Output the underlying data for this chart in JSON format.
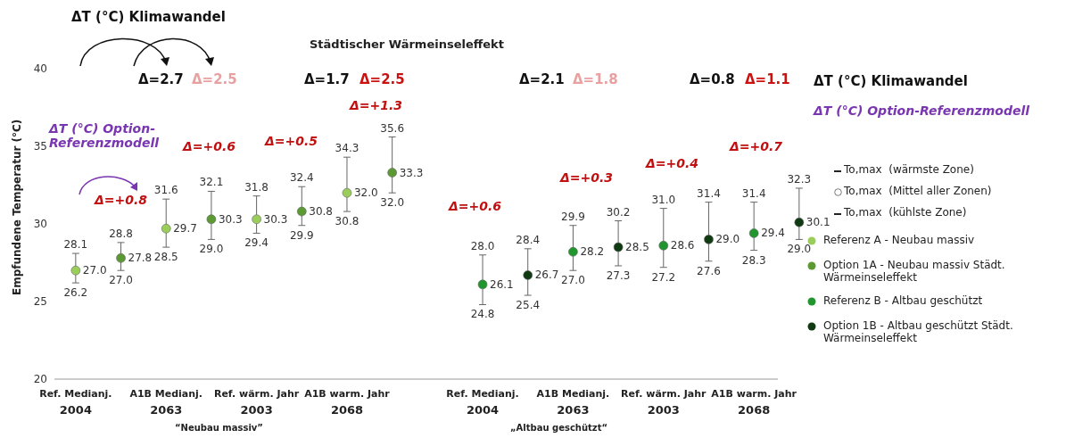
{
  "chart_data": {
    "type": "scatter",
    "title": "Städtischer Wärmeinseleffekt",
    "ylabel": "Empfundene Temperatur (°C)",
    "categories": [
      "Ref. Medianj. 2004",
      null,
      "A1B Medianj. 2063",
      null,
      "Ref. wärm. Jahr 2003",
      null,
      "A1B warm. Jahr 2068",
      null,
      null,
      "Ref. Medianj. 2004",
      null,
      "A1B Medianj. 2063",
      null,
      "Ref. wärm. Jahr 2003",
      null,
      "A1B warm. Jahr 2068",
      null
    ],
    "series": [
      {
        "name": "Referenz A - Neubau massiv",
        "color": "#9acd5a",
        "values": [
          27.0,
          null,
          29.7,
          null,
          30.3,
          null,
          32.0,
          null,
          null,
          null,
          null,
          null,
          null,
          null,
          null,
          null,
          null
        ],
        "value_labels": [
          "27.0",
          null,
          "29.7",
          null,
          "30.3",
          null,
          "32.0",
          null,
          null,
          null,
          null,
          null,
          null,
          null,
          null,
          null,
          null
        ],
        "errors": [
          [
            26.2,
            28.1
          ],
          null,
          [
            28.5,
            31.6
          ],
          null,
          [
            29.4,
            31.8
          ],
          null,
          [
            30.8,
            34.3
          ],
          null,
          null,
          null,
          null,
          null,
          null,
          null,
          null,
          null,
          null
        ]
      },
      {
        "name": "Option 1A - Neubau massiv Städt. Wärmeinseleffekt",
        "color": "#5b9a32",
        "values": [
          null,
          27.8,
          null,
          30.3,
          null,
          30.8,
          null,
          33.3,
          null,
          null,
          null,
          null,
          null,
          null,
          null,
          null,
          null
        ],
        "value_labels": [
          null,
          "27.8",
          null,
          "30.3",
          null,
          "30.8",
          null,
          "33.3",
          null,
          null,
          null,
          null,
          null,
          null,
          null,
          null,
          null
        ],
        "errors": [
          null,
          [
            27.0,
            28.8
          ],
          null,
          [
            29.0,
            32.1
          ],
          null,
          [
            29.9,
            32.4
          ],
          null,
          [
            32.0,
            35.6
          ],
          null,
          null,
          null,
          null,
          null,
          null,
          null,
          null,
          null
        ]
      },
      {
        "name": "Referenz B - Altbau geschützt",
        "color": "#22962e",
        "values": [
          null,
          null,
          null,
          null,
          null,
          null,
          null,
          null,
          null,
          26.1,
          null,
          28.2,
          null,
          28.6,
          null,
          29.4,
          null
        ],
        "value_labels": [
          null,
          null,
          null,
          null,
          null,
          null,
          null,
          null,
          null,
          "26.1",
          null,
          "28.2",
          null,
          "28.6",
          null,
          "29.4",
          null
        ],
        "errors": [
          null,
          null,
          null,
          null,
          null,
          null,
          null,
          null,
          null,
          [
            24.8,
            28.0
          ],
          null,
          [
            27.0,
            29.9
          ],
          null,
          [
            27.2,
            31.0
          ],
          null,
          [
            28.3,
            31.4
          ],
          null
        ]
      },
      {
        "name": "Option 1B - Altbau geschützt Städt. Wärmeinseleffekt",
        "color": "#0f3a12",
        "values": [
          null,
          null,
          null,
          null,
          null,
          null,
          null,
          null,
          null,
          null,
          26.7,
          null,
          28.5,
          null,
          29.0,
          null,
          30.1
        ],
        "value_labels": [
          null,
          null,
          null,
          null,
          null,
          null,
          null,
          null,
          null,
          null,
          "26.7",
          null,
          "28.5",
          null,
          "29.0",
          null,
          "30.1"
        ],
        "errors": [
          null,
          null,
          null,
          null,
          null,
          null,
          null,
          null,
          null,
          null,
          [
            25.4,
            28.4
          ],
          null,
          [
            27.3,
            30.2
          ],
          null,
          [
            27.6,
            31.4
          ],
          null,
          [
            29.0,
            32.3
          ]
        ]
      }
    ],
    "ylim": [
      20,
      40
    ],
    "yticks": [
      20,
      25,
      30,
      35,
      40
    ],
    "data_labels": true,
    "legend": "right",
    "marker": "circle",
    "annotations": [
      "ΔT (°C) Klimawandel",
      "ΔT (°C) Option-Referenzmodell",
      "ΔT (°C) Klimawandel",
      "ΔT (°C) Option-Referenzmodell",
      "Δ=2.7",
      "Δ=2.5",
      "Δ=1.7",
      "Δ=2.5",
      "Δ=2.1",
      "Δ=1.8",
      "Δ=0.8",
      "Δ=1.1",
      "Δ=+0.8",
      "Δ=+0.6",
      "Δ=+0.5",
      "Δ=+1.3",
      "Δ=+0.6",
      "Δ=+0.3",
      "Δ=+0.4",
      "Δ=+0.7",
      "“Neubau massiv”",
      "„Altbau geschützt“",
      "To,max  (wärmste Zone)",
      "To,max  (Mittel aller Zonen)",
      "To,max  (kühlste Zone)",
      {
        "text": "28.1",
        "y": 28.1
      },
      {
        "text": "26.2",
        "y": 26.2
      },
      {
        "text": "31.6",
        "y": 31.6
      },
      {
        "text": "28.5",
        "y": 28.5
      },
      {
        "text": "31.8",
        "y": 31.8
      },
      {
        "text": "29.4",
        "y": 29.4
      },
      {
        "text": "34.3",
        "y": 34.3
      },
      {
        "text": "30.8",
        "y": 30.8
      },
      {
        "text": "28.8",
        "y": 28.8
      },
      {
        "text": "27.0",
        "y": 27.0
      },
      {
        "text": "32.1",
        "y": 32.1
      },
      {
        "text": "29.0",
        "y": 29.0
      },
      {
        "text": "32.4",
        "y": 32.4
      },
      {
        "text": "29.9",
        "y": 29.9
      },
      {
        "text": "35.6",
        "y": 35.6
      },
      {
        "text": "32.0",
        "y": 32.0
      },
      {
        "text": "28.0",
        "y": 28.0
      },
      {
        "text": "24.8",
        "y": 24.8
      },
      {
        "text": "29.9",
        "y": 29.9
      },
      {
        "text": "27.0",
        "y": 27.0
      },
      {
        "text": "31.0",
        "y": 31.0
      },
      {
        "text": "27.2",
        "y": 27.2
      },
      {
        "text": "31.4",
        "y": 31.4
      },
      {
        "text": "28.3",
        "y": 28.3
      },
      {
        "text": "28.4",
        "y": 28.4
      },
      {
        "text": "25.4",
        "y": 25.4
      },
      {
        "text": "30.2",
        "y": 30.2
      },
      {
        "text": "27.3",
        "y": 27.3
      },
      {
        "text": "31.4",
        "y": 31.4
      },
      {
        "text": "27.6",
        "y": 27.6
      },
      {
        "text": "32.3",
        "y": 32.3
      },
      {
        "text": "29.0",
        "y": 29.0
      }
    ]
  }
}
